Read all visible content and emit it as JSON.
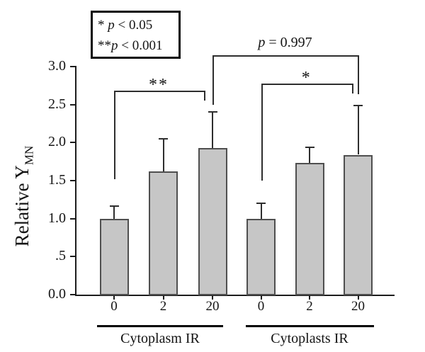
{
  "figure": {
    "background": "#ffffff",
    "bar_fill": "#c6c6c6",
    "bar_border": "#4f4f4f",
    "line_color": "#2e2e2e"
  },
  "legend": {
    "lines": [
      {
        "marker": "* ",
        "var": "p",
        "relation": " < 0.05"
      },
      {
        "marker": "**",
        "var": "p",
        "relation": " < 0.001"
      }
    ]
  },
  "chart_data": {
    "type": "bar",
    "title": "",
    "ylabel": "Relative Y",
    "ylabel_sub": "MN",
    "xlabel": "",
    "ylim": [
      0.0,
      3.0
    ],
    "grid": false,
    "yticks": [
      {
        "label": "0.0",
        "value": 0.0
      },
      {
        "label": ".5",
        "value": 0.5
      },
      {
        "label": "1.0",
        "value": 1.0
      },
      {
        "label": "1.5",
        "value": 1.5
      },
      {
        "label": "2.0",
        "value": 2.0
      },
      {
        "label": "2.5",
        "value": 2.5
      },
      {
        "label": "3.0",
        "value": 3.0
      }
    ],
    "groups": [
      {
        "name": "Cytoplasm IR",
        "categories": [
          "0",
          "2",
          "20"
        ],
        "values": [
          1.0,
          1.62,
          1.93
        ],
        "errors": [
          0.16,
          0.43,
          0.47
        ]
      },
      {
        "name": "Cytoplasts IR",
        "categories": [
          "0",
          "2",
          "20"
        ],
        "values": [
          1.0,
          1.73,
          1.84
        ],
        "errors": [
          0.2,
          0.21,
          0.65
        ]
      }
    ],
    "annotations": [
      {
        "label": "**",
        "connects": [
          "Cytoplasm IR 0",
          "Cytoplasm IR 20"
        ]
      },
      {
        "label_var": "p",
        "label_rest": "= 0.997",
        "connects": [
          "Cytoplasm IR 20",
          "Cytoplasts IR 20"
        ]
      },
      {
        "label": "*",
        "connects": [
          "Cytoplasts IR 0",
          "Cytoplasts IR 20"
        ]
      }
    ]
  }
}
